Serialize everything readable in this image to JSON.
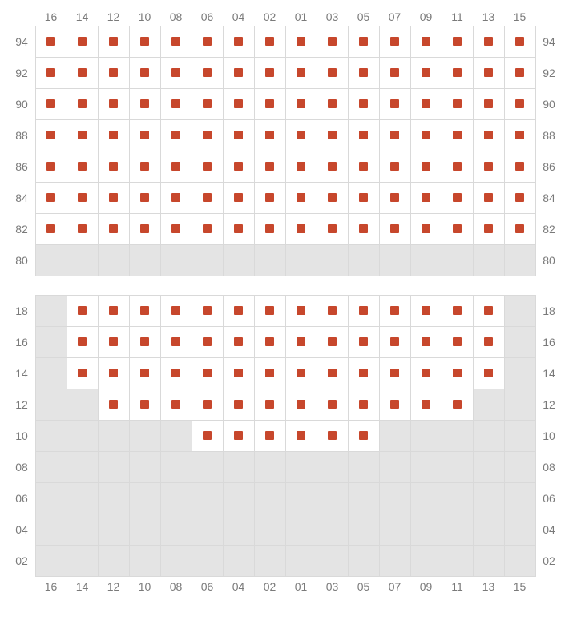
{
  "seat_color": "#c7472c",
  "cell_available_bg": "#ffffff",
  "cell_unavailable_bg": "#e4e4e4",
  "grid_border_color": "#d9d9d9",
  "label_color": "#7a7a7a",
  "label_fontsize": 14,
  "columns": [
    "16",
    "14",
    "12",
    "10",
    "08",
    "06",
    "04",
    "02",
    "01",
    "03",
    "05",
    "07",
    "09",
    "11",
    "13",
    "15"
  ],
  "sections": [
    {
      "name": "upper",
      "show_top_labels": true,
      "show_bottom_labels": false,
      "rows": [
        {
          "label": "94",
          "cells": [
            1,
            1,
            1,
            1,
            1,
            1,
            1,
            1,
            1,
            1,
            1,
            1,
            1,
            1,
            1,
            1
          ]
        },
        {
          "label": "92",
          "cells": [
            1,
            1,
            1,
            1,
            1,
            1,
            1,
            1,
            1,
            1,
            1,
            1,
            1,
            1,
            1,
            1
          ]
        },
        {
          "label": "90",
          "cells": [
            1,
            1,
            1,
            1,
            1,
            1,
            1,
            1,
            1,
            1,
            1,
            1,
            1,
            1,
            1,
            1
          ]
        },
        {
          "label": "88",
          "cells": [
            1,
            1,
            1,
            1,
            1,
            1,
            1,
            1,
            1,
            1,
            1,
            1,
            1,
            1,
            1,
            1
          ]
        },
        {
          "label": "86",
          "cells": [
            1,
            1,
            1,
            1,
            1,
            1,
            1,
            1,
            1,
            1,
            1,
            1,
            1,
            1,
            1,
            1
          ]
        },
        {
          "label": "84",
          "cells": [
            1,
            1,
            1,
            1,
            1,
            1,
            1,
            1,
            1,
            1,
            1,
            1,
            1,
            1,
            1,
            1
          ]
        },
        {
          "label": "82",
          "cells": [
            1,
            1,
            1,
            1,
            1,
            1,
            1,
            1,
            1,
            1,
            1,
            1,
            1,
            1,
            1,
            1
          ]
        },
        {
          "label": "80",
          "cells": [
            0,
            0,
            0,
            0,
            0,
            0,
            0,
            0,
            0,
            0,
            0,
            0,
            0,
            0,
            0,
            0
          ]
        }
      ]
    },
    {
      "name": "lower",
      "show_top_labels": false,
      "show_bottom_labels": true,
      "rows": [
        {
          "label": "18",
          "cells": [
            0,
            1,
            1,
            1,
            1,
            1,
            1,
            1,
            1,
            1,
            1,
            1,
            1,
            1,
            1,
            0
          ]
        },
        {
          "label": "16",
          "cells": [
            0,
            1,
            1,
            1,
            1,
            1,
            1,
            1,
            1,
            1,
            1,
            1,
            1,
            1,
            1,
            0
          ]
        },
        {
          "label": "14",
          "cells": [
            0,
            1,
            1,
            1,
            1,
            1,
            1,
            1,
            1,
            1,
            1,
            1,
            1,
            1,
            1,
            0
          ]
        },
        {
          "label": "12",
          "cells": [
            0,
            0,
            1,
            1,
            1,
            1,
            1,
            1,
            1,
            1,
            1,
            1,
            1,
            1,
            0,
            0
          ]
        },
        {
          "label": "10",
          "cells": [
            0,
            0,
            0,
            0,
            0,
            1,
            1,
            1,
            1,
            1,
            1,
            0,
            0,
            0,
            0,
            0
          ]
        },
        {
          "label": "08",
          "cells": [
            0,
            0,
            0,
            0,
            0,
            0,
            0,
            0,
            0,
            0,
            0,
            0,
            0,
            0,
            0,
            0
          ]
        },
        {
          "label": "06",
          "cells": [
            0,
            0,
            0,
            0,
            0,
            0,
            0,
            0,
            0,
            0,
            0,
            0,
            0,
            0,
            0,
            0
          ]
        },
        {
          "label": "04",
          "cells": [
            0,
            0,
            0,
            0,
            0,
            0,
            0,
            0,
            0,
            0,
            0,
            0,
            0,
            0,
            0,
            0
          ]
        },
        {
          "label": "02",
          "cells": [
            0,
            0,
            0,
            0,
            0,
            0,
            0,
            0,
            0,
            0,
            0,
            0,
            0,
            0,
            0,
            0
          ]
        }
      ]
    }
  ]
}
